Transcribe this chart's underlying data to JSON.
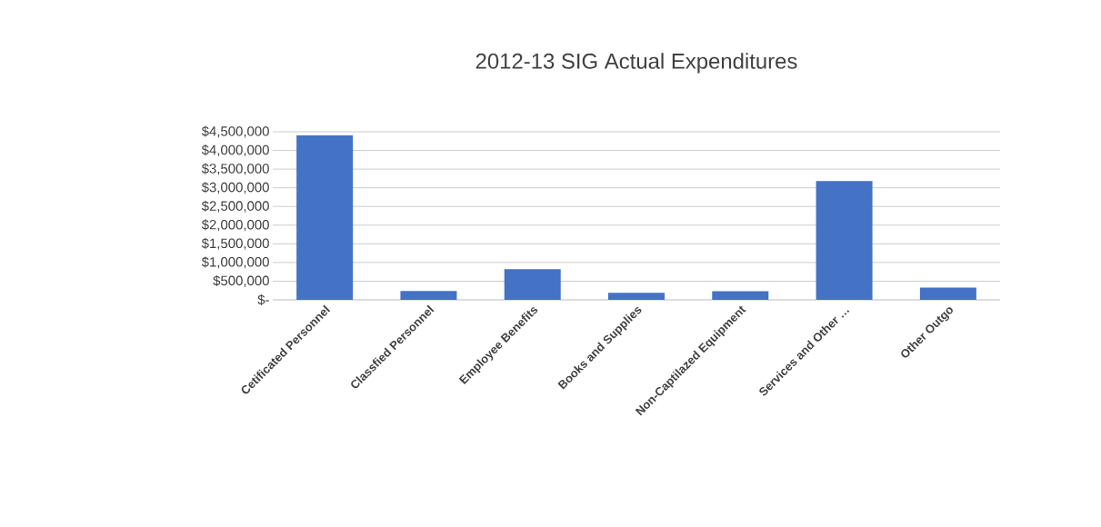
{
  "chart_data": {
    "type": "bar",
    "title": "2012-13 SIG Actual Expenditures",
    "categories": [
      "Cetificated Personnel",
      "Classfied Personnel",
      "Employee Benefits",
      "Books and Supplies",
      "Non-Captilazed Equipment",
      "Services and Other …",
      "Other Outgo"
    ],
    "values": [
      4400000,
      240000,
      820000,
      190000,
      230000,
      3180000,
      330000
    ],
    "color": "#4472c4",
    "ylim": [
      0,
      4500000
    ],
    "yticks": [
      {
        "value": 0,
        "label": "$-"
      },
      {
        "value": 500000,
        "label": "$500,000"
      },
      {
        "value": 1000000,
        "label": "$1,000,000"
      },
      {
        "value": 1500000,
        "label": "$1,500,000"
      },
      {
        "value": 2000000,
        "label": "$2,000,000"
      },
      {
        "value": 2500000,
        "label": "$2,500,000"
      },
      {
        "value": 3000000,
        "label": "$3,000,000"
      },
      {
        "value": 3500000,
        "label": "$3,500,000"
      },
      {
        "value": 4000000,
        "label": "$4,000,000"
      },
      {
        "value": 4500000,
        "label": "$4,500,000"
      }
    ],
    "grid": "y"
  }
}
